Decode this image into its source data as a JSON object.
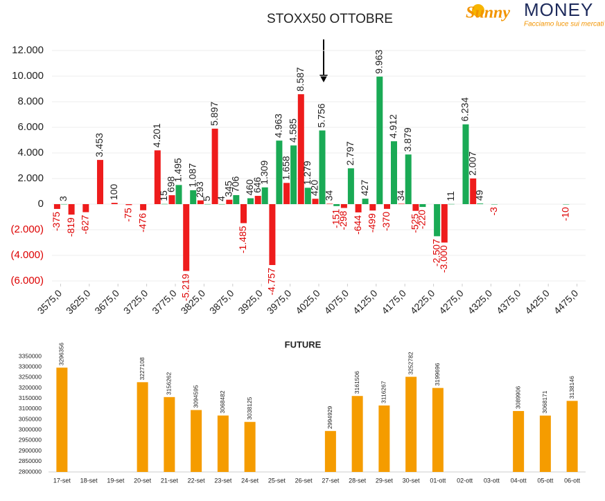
{
  "logo": {
    "brand_a": "Sunny",
    "brand_b": "MONEY",
    "tagline": "Facciamo luce sui mercati"
  },
  "chart_data": [
    {
      "type": "bar",
      "title": "STOXX50 OTTOBRE",
      "x": [
        3575,
        3600,
        3625,
        3650,
        3675,
        3700,
        3725,
        3750,
        3775,
        3800,
        3825,
        3850,
        3875,
        3900,
        3925,
        3950,
        3975,
        4000,
        4025,
        4050,
        4075,
        4100,
        4125,
        4150,
        4175,
        4200,
        4225,
        4250,
        4275,
        4300,
        4325,
        4350,
        4375,
        4400,
        4425,
        4450,
        4475
      ],
      "series": [
        {
          "color": "#ee1c1c",
          "values": [
            -375,
            -819,
            -627,
            3453,
            100,
            -75,
            -476,
            4201,
            698,
            -5219,
            293,
            5897,
            345,
            -1485,
            646,
            -4757,
            1658,
            8587,
            420,
            34,
            -298,
            -644,
            -499,
            -370,
            34,
            -525,
            null,
            -3000,
            null,
            2007,
            null,
            null,
            null,
            null,
            null,
            null,
            null
          ],
          "value_labels": [
            "-375",
            "-819",
            "-627",
            "3.453",
            "100",
            "-75",
            "-476",
            "4.201",
            "698",
            "-5.219",
            "293",
            "5.897",
            "345",
            "-1.485",
            "646",
            "-4.757",
            "1.658",
            "8.587",
            "420",
            "34",
            "-298",
            "-644",
            "-499",
            "-370",
            "34",
            "-525",
            null,
            "-3.000",
            null,
            "2.007",
            null,
            null,
            null,
            null,
            null,
            null,
            null
          ]
        },
        {
          "color": "#1aaa55",
          "values": [
            3,
            null,
            null,
            null,
            null,
            null,
            null,
            15,
            1495,
            1087,
            5,
            4,
            706,
            460,
            1309,
            4963,
            4585,
            1279,
            5756,
            -151,
            2797,
            427,
            9963,
            4912,
            3879,
            -220,
            -2507,
            11,
            6234,
            49,
            -3,
            null,
            null,
            null,
            null,
            -10,
            null
          ],
          "value_labels": [
            "3",
            null,
            null,
            null,
            null,
            null,
            null,
            "15",
            "1.495",
            "1.087",
            "5",
            "4",
            "706",
            "460",
            "1.309",
            "4.963",
            "4.585",
            "1.279",
            "5.756",
            "-151",
            "2.797",
            "427",
            "9.963",
            "4.912",
            "3.879",
            "-220",
            "-2.507",
            "11",
            "6.234",
            "49",
            "-3",
            null,
            null,
            null,
            null,
            "-10",
            null
          ]
        }
      ],
      "xlim": [
        3560,
        4490
      ],
      "xticks": [
        {
          "value": 3575,
          "label": "3575,0"
        },
        {
          "value": 3625,
          "label": "3625,0"
        },
        {
          "value": 3675,
          "label": "3675,0"
        },
        {
          "value": 3725,
          "label": "3725,0"
        },
        {
          "value": 3775,
          "label": "3775,0"
        },
        {
          "value": 3825,
          "label": "3825,0"
        },
        {
          "value": 3875,
          "label": "3875,0"
        },
        {
          "value": 3925,
          "label": "3925,0"
        },
        {
          "value": 3975,
          "label": "3975,0"
        },
        {
          "value": 4025,
          "label": "4025,0"
        },
        {
          "value": 4075,
          "label": "4075,0"
        },
        {
          "value": 4125,
          "label": "4125,0"
        },
        {
          "value": 4175,
          "label": "4175,0"
        },
        {
          "value": 4225,
          "label": "4225,0"
        },
        {
          "value": 4275,
          "label": "4275,0"
        },
        {
          "value": 4325,
          "label": "4325,0"
        },
        {
          "value": 4375,
          "label": "4375,0"
        },
        {
          "value": 4425,
          "label": "4425,0"
        },
        {
          "value": 4475,
          "label": "4475,0"
        }
      ],
      "ylim": [
        -6000,
        12000
      ],
      "yticks": [
        {
          "value": -6000,
          "label": "(6.000)"
        },
        {
          "value": -4000,
          "label": "(4.000)"
        },
        {
          "value": -2000,
          "label": "(2.000)"
        },
        0,
        {
          "value": 2000,
          "label": "2.000"
        },
        {
          "value": 4000,
          "label": "4.000"
        },
        {
          "value": 6000,
          "label": "6.000"
        },
        {
          "value": 8000,
          "label": "8.000"
        },
        {
          "value": 10000,
          "label": "10.000"
        },
        {
          "value": 12000,
          "label": "12.000"
        }
      ],
      "grid": true
    },
    {
      "type": "bar",
      "title": "FUTURE",
      "color": "#f59c00",
      "categories": [
        "17-set",
        "18-set",
        "19-set",
        "20-set",
        "21-set",
        "22-set",
        "23-set",
        "24-set",
        "25-set",
        "26-set",
        "27-set",
        "28-set",
        "29-set",
        "30-set",
        "01-ott",
        "02-ott",
        "03-ott",
        "04-ott",
        "05-ott",
        "06-ott"
      ],
      "values": [
        3296356,
        null,
        null,
        3227108,
        3156262,
        3094595,
        3068482,
        3038125,
        null,
        null,
        2994929,
        3161506,
        3116267,
        3252782,
        3199696,
        null,
        null,
        3089906,
        3068171,
        3138146
      ],
      "ylim": [
        2800000,
        3350000
      ],
      "yticks": [
        2800000,
        2850000,
        2900000,
        2950000,
        3000000,
        3050000,
        3100000,
        3150000,
        3200000,
        3250000,
        3300000,
        3350000
      ],
      "grid": false
    }
  ]
}
